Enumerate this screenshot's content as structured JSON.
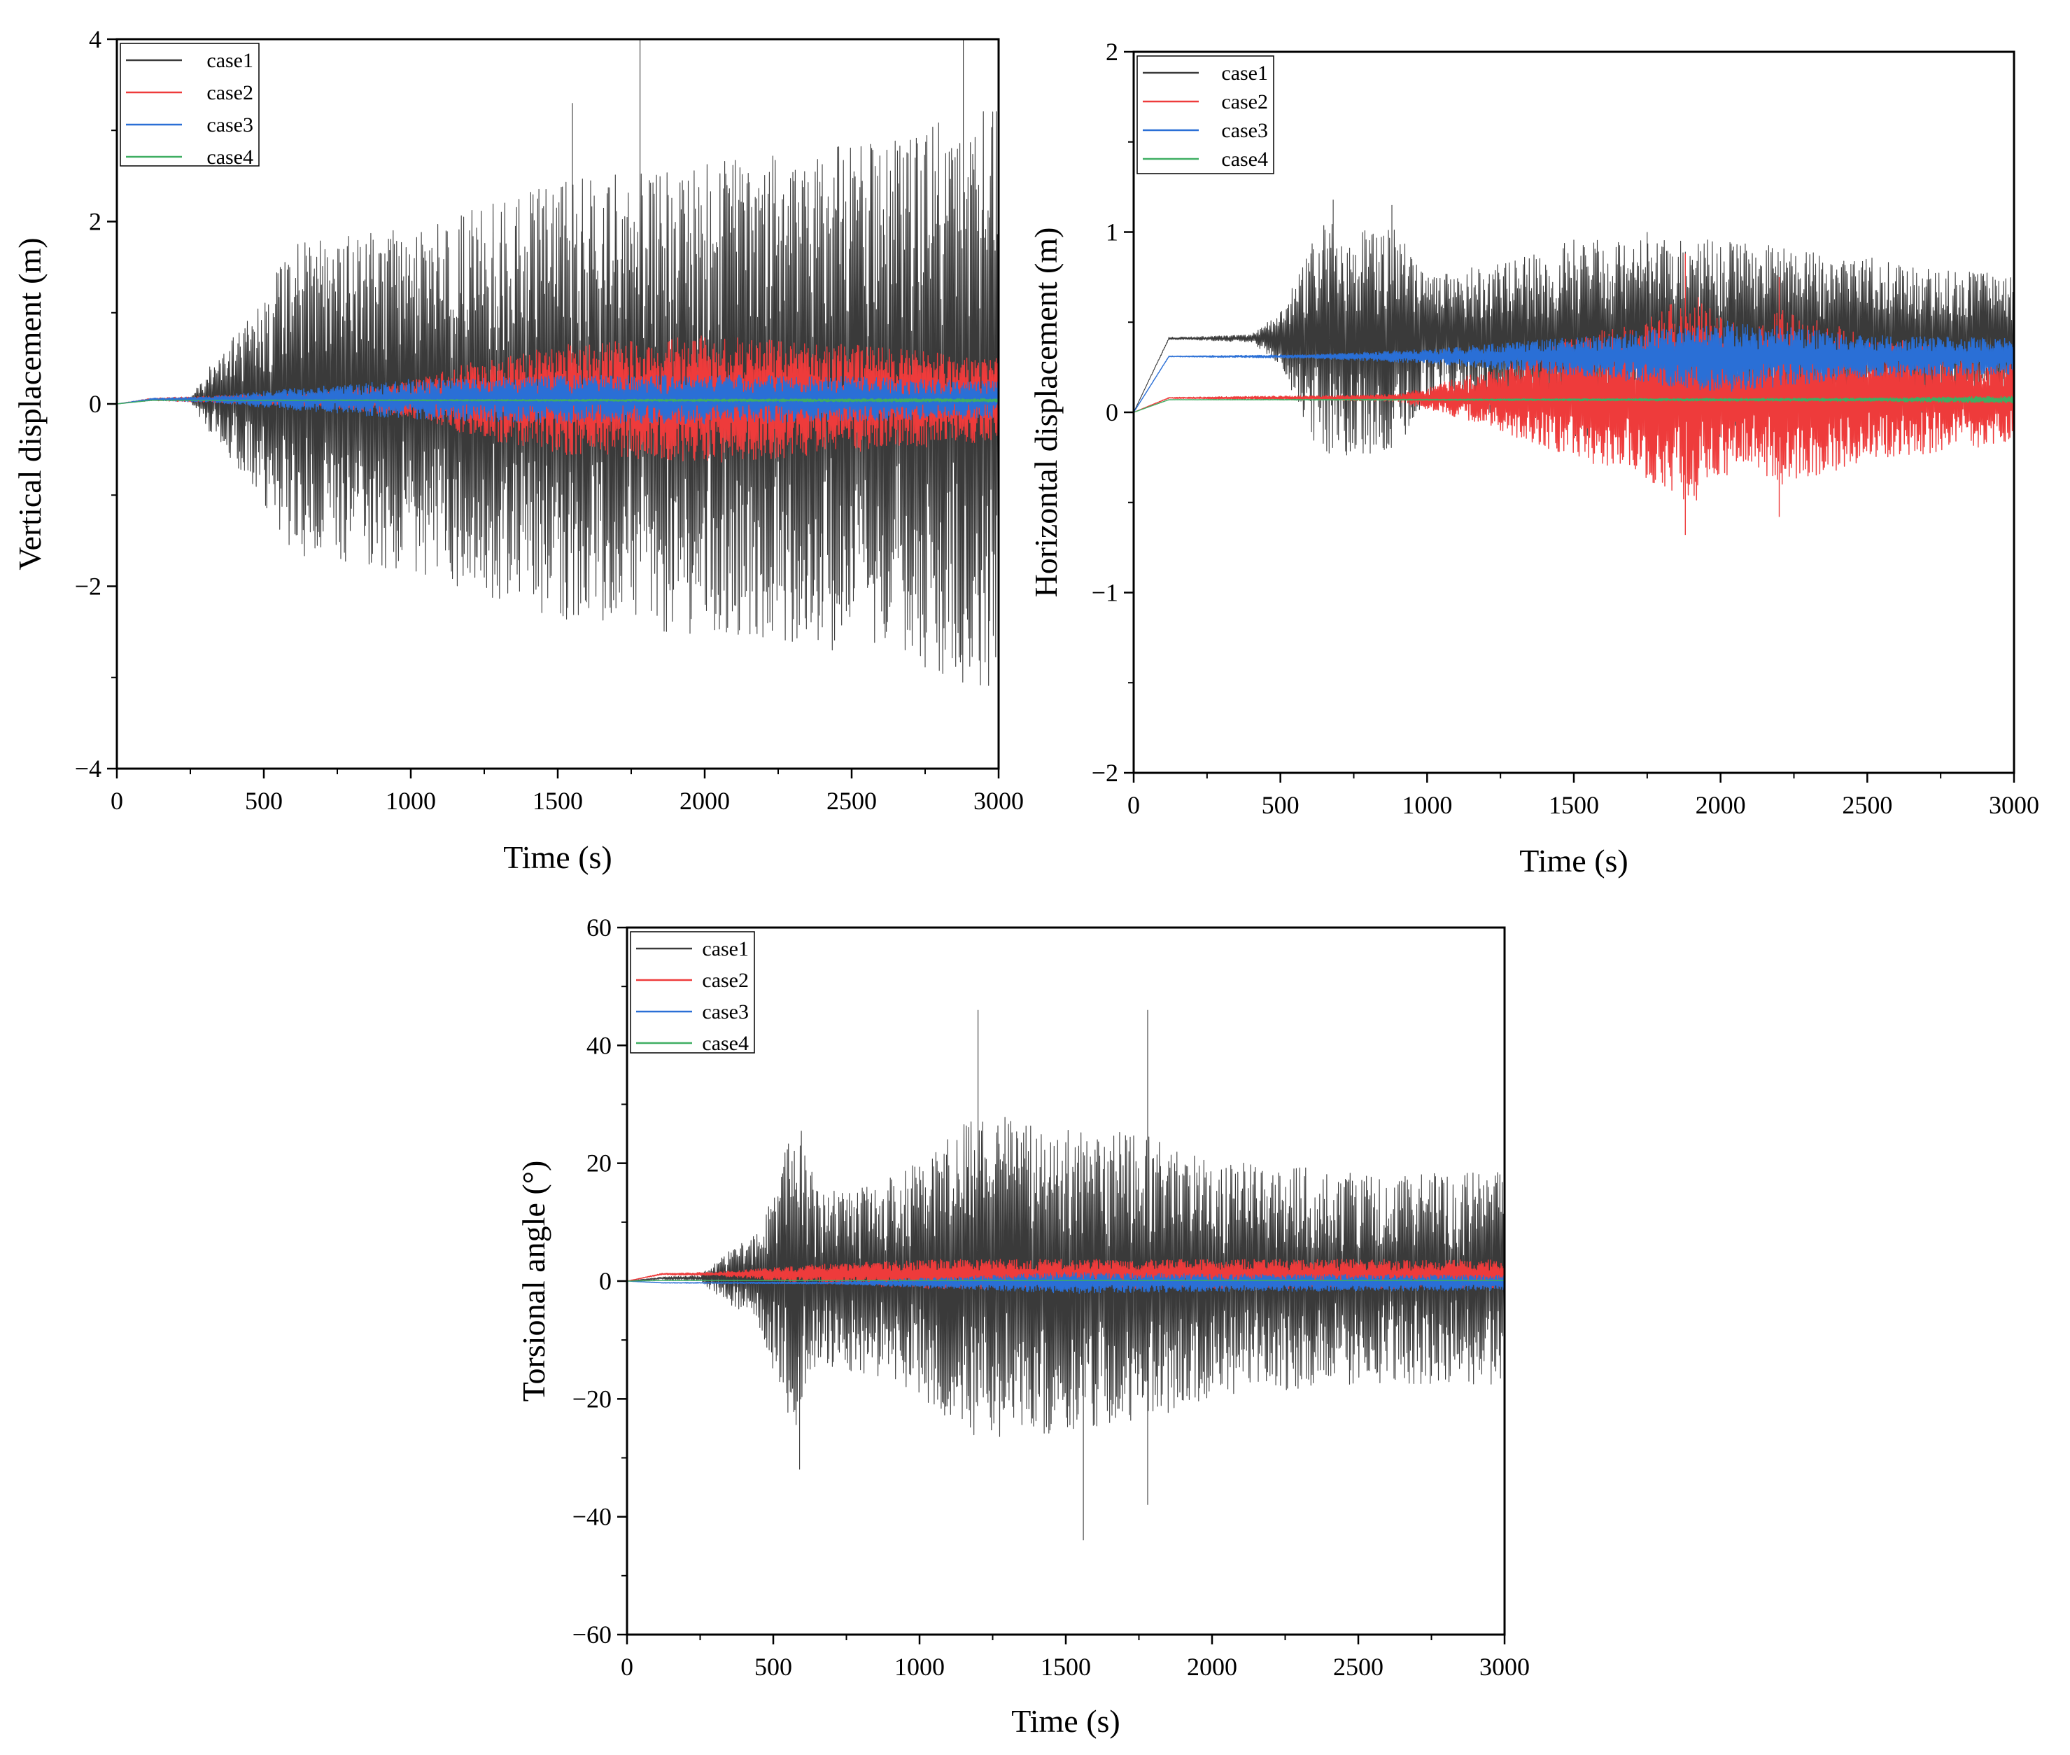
{
  "figure": {
    "background": "#ffffff"
  },
  "chart_data": [
    {
      "id": "vertical",
      "type": "line",
      "title": "",
      "xlabel": "Time  (s)",
      "ylabel": "Vertical displacement (m)",
      "xlim": [
        0,
        3000
      ],
      "ylim": [
        -4,
        4
      ],
      "xticks": [
        0,
        500,
        1000,
        1500,
        2000,
        2500,
        3000
      ],
      "yticks": [
        -4,
        -2,
        0,
        2,
        4
      ],
      "xtick_labels": [
        "0",
        "500",
        "1000",
        "1500",
        "2000",
        "2500",
        "3000"
      ],
      "ytick_labels": [
        "−4",
        "−2",
        "0",
        "2",
        "4"
      ],
      "legend": {
        "position": "top-left"
      },
      "series": [
        {
          "name": "case1",
          "color": "#3a3a3a",
          "offset": 0.05,
          "envelope": [
            [
              0,
              0
            ],
            [
              250,
              0.02
            ],
            [
              300,
              0.3
            ],
            [
              450,
              0.9
            ],
            [
              600,
              1.7
            ],
            [
              1000,
              1.9
            ],
            [
              1500,
              2.4
            ],
            [
              2000,
              2.6
            ],
            [
              2500,
              2.8
            ],
            [
              3000,
              3.2
            ]
          ],
          "peaks": [
            [
              1550,
              3.3
            ],
            [
              1780,
              4.0
            ],
            [
              2880,
              4.0
            ],
            [
              2400,
              -2.45
            ],
            [
              1980,
              -1.95
            ]
          ]
        },
        {
          "name": "case2",
          "color": "#ee3b3b",
          "offset": 0.05,
          "envelope": [
            [
              0,
              0
            ],
            [
              700,
              0.08
            ],
            [
              1000,
              0.2
            ],
            [
              1200,
              0.4
            ],
            [
              1500,
              0.6
            ],
            [
              2000,
              0.7
            ],
            [
              2500,
              0.6
            ],
            [
              3000,
              0.45
            ]
          ],
          "peaks": []
        },
        {
          "name": "case3",
          "color": "#2a6fd6",
          "offset": 0.05,
          "envelope": [
            [
              0,
              0
            ],
            [
              300,
              0.03
            ],
            [
              600,
              0.12
            ],
            [
              1000,
              0.22
            ],
            [
              1500,
              0.26
            ],
            [
              2000,
              0.27
            ],
            [
              2500,
              0.25
            ],
            [
              3000,
              0.2
            ]
          ],
          "peaks": []
        },
        {
          "name": "case4",
          "color": "#3fae62",
          "offset": 0.04,
          "envelope": [
            [
              0,
              0
            ],
            [
              3000,
              0.02
            ]
          ],
          "peaks": []
        }
      ]
    },
    {
      "id": "horizontal",
      "type": "line",
      "title": "",
      "xlabel": "Time (s)",
      "ylabel": "Horizontal displacement (m)",
      "xlim": [
        0,
        3000
      ],
      "ylim": [
        -2,
        2
      ],
      "xticks": [
        0,
        500,
        1000,
        1500,
        2000,
        2500,
        3000
      ],
      "yticks": [
        -2,
        -1,
        0,
        1,
        2
      ],
      "xtick_labels": [
        "0",
        "500",
        "1000",
        "1500",
        "2000",
        "2500",
        "3000"
      ],
      "ytick_labels": [
        "−2",
        "−1",
        "0",
        "1",
        "2"
      ],
      "legend": {
        "position": "top-left"
      },
      "series": [
        {
          "name": "case1",
          "color": "#3a3a3a",
          "offset": 0.41,
          "envelope": [
            [
              0,
              0
            ],
            [
              400,
              0.02
            ],
            [
              500,
              0.15
            ],
            [
              650,
              0.7
            ],
            [
              900,
              0.6
            ],
            [
              1000,
              0.35
            ],
            [
              1300,
              0.45
            ],
            [
              1500,
              0.55
            ],
            [
              2000,
              0.55
            ],
            [
              2500,
              0.45
            ],
            [
              3000,
              0.35
            ]
          ],
          "peaks": [
            [
              680,
              1.18
            ],
            [
              880,
              1.15
            ],
            [
              1750,
              1.0
            ]
          ]
        },
        {
          "name": "case2",
          "color": "#ee3b3b",
          "offset": 0.08,
          "envelope": [
            [
              0,
              0
            ],
            [
              900,
              0.02
            ],
            [
              1200,
              0.15
            ],
            [
              1500,
              0.35
            ],
            [
              1700,
              0.4
            ],
            [
              1900,
              0.6
            ],
            [
              2100,
              0.35
            ],
            [
              2200,
              0.5
            ],
            [
              2500,
              0.35
            ],
            [
              3000,
              0.25
            ]
          ],
          "peaks": [
            [
              1880,
              -0.68
            ],
            [
              1880,
              0.88
            ],
            [
              2200,
              0.75
            ],
            [
              2200,
              -0.58
            ]
          ]
        },
        {
          "name": "case3",
          "color": "#2a6fd6",
          "offset": 0.31,
          "envelope": [
            [
              0,
              0
            ],
            [
              600,
              0.01
            ],
            [
              1000,
              0.04
            ],
            [
              1300,
              0.08
            ],
            [
              1600,
              0.12
            ],
            [
              2000,
              0.2
            ],
            [
              2500,
              0.12
            ],
            [
              3000,
              0.1
            ]
          ],
          "peaks": []
        },
        {
          "name": "case4",
          "color": "#3fae62",
          "offset": 0.07,
          "envelope": [
            [
              0,
              0
            ],
            [
              2500,
              0.01
            ],
            [
              3000,
              0.02
            ]
          ],
          "peaks": []
        }
      ]
    },
    {
      "id": "torsional",
      "type": "line",
      "title": "",
      "xlabel": "Time (s)",
      "ylabel": "Torsional angle (°)",
      "xlim": [
        0,
        3000
      ],
      "ylim": [
        -60,
        60
      ],
      "xticks": [
        0,
        500,
        1000,
        1500,
        2000,
        2500,
        3000
      ],
      "yticks": [
        -60,
        -40,
        -20,
        0,
        20,
        40,
        60
      ],
      "xtick_labels": [
        "0",
        "500",
        "1000",
        "1500",
        "2000",
        "2500",
        "3000"
      ],
      "ytick_labels": [
        "−60",
        "−40",
        "−20",
        "0",
        "20",
        "40",
        "60"
      ],
      "legend": {
        "position": "top-left"
      },
      "series": [
        {
          "name": "case1",
          "color": "#3a3a3a",
          "offset": 0.5,
          "envelope": [
            [
              0,
              0
            ],
            [
              250,
              0.5
            ],
            [
              330,
              4
            ],
            [
              450,
              8
            ],
            [
              580,
              28
            ],
            [
              650,
              15
            ],
            [
              800,
              16
            ],
            [
              1000,
              20
            ],
            [
              1200,
              28
            ],
            [
              1500,
              26
            ],
            [
              1800,
              24
            ],
            [
              2000,
              20
            ],
            [
              2500,
              18
            ],
            [
              3000,
              18
            ]
          ],
          "peaks": [
            [
              1200,
              46
            ],
            [
              1780,
              46
            ],
            [
              1560,
              -44
            ],
            [
              1780,
              -38
            ],
            [
              590,
              -32
            ]
          ]
        },
        {
          "name": "case2",
          "color": "#ee3b3b",
          "offset": 1.2,
          "envelope": [
            [
              0,
              0
            ],
            [
              100,
              0.1
            ],
            [
              300,
              0.3
            ],
            [
              600,
              1.5
            ],
            [
              1000,
              2.5
            ],
            [
              1500,
              2.5
            ],
            [
              2000,
              2.5
            ],
            [
              3000,
              2.5
            ]
          ],
          "peaks": []
        },
        {
          "name": "case3",
          "color": "#2a6fd6",
          "offset": -0.3,
          "envelope": [
            [
              0,
              0
            ],
            [
              700,
              0.2
            ],
            [
              1200,
              1.2
            ],
            [
              1500,
              1.8
            ],
            [
              2000,
              1.5
            ],
            [
              3000,
              1.3
            ]
          ],
          "peaks": []
        },
        {
          "name": "case4",
          "color": "#3fae62",
          "offset": 0.1,
          "envelope": [
            [
              0,
              0
            ],
            [
              3000,
              0.05
            ]
          ],
          "peaks": []
        }
      ]
    }
  ]
}
